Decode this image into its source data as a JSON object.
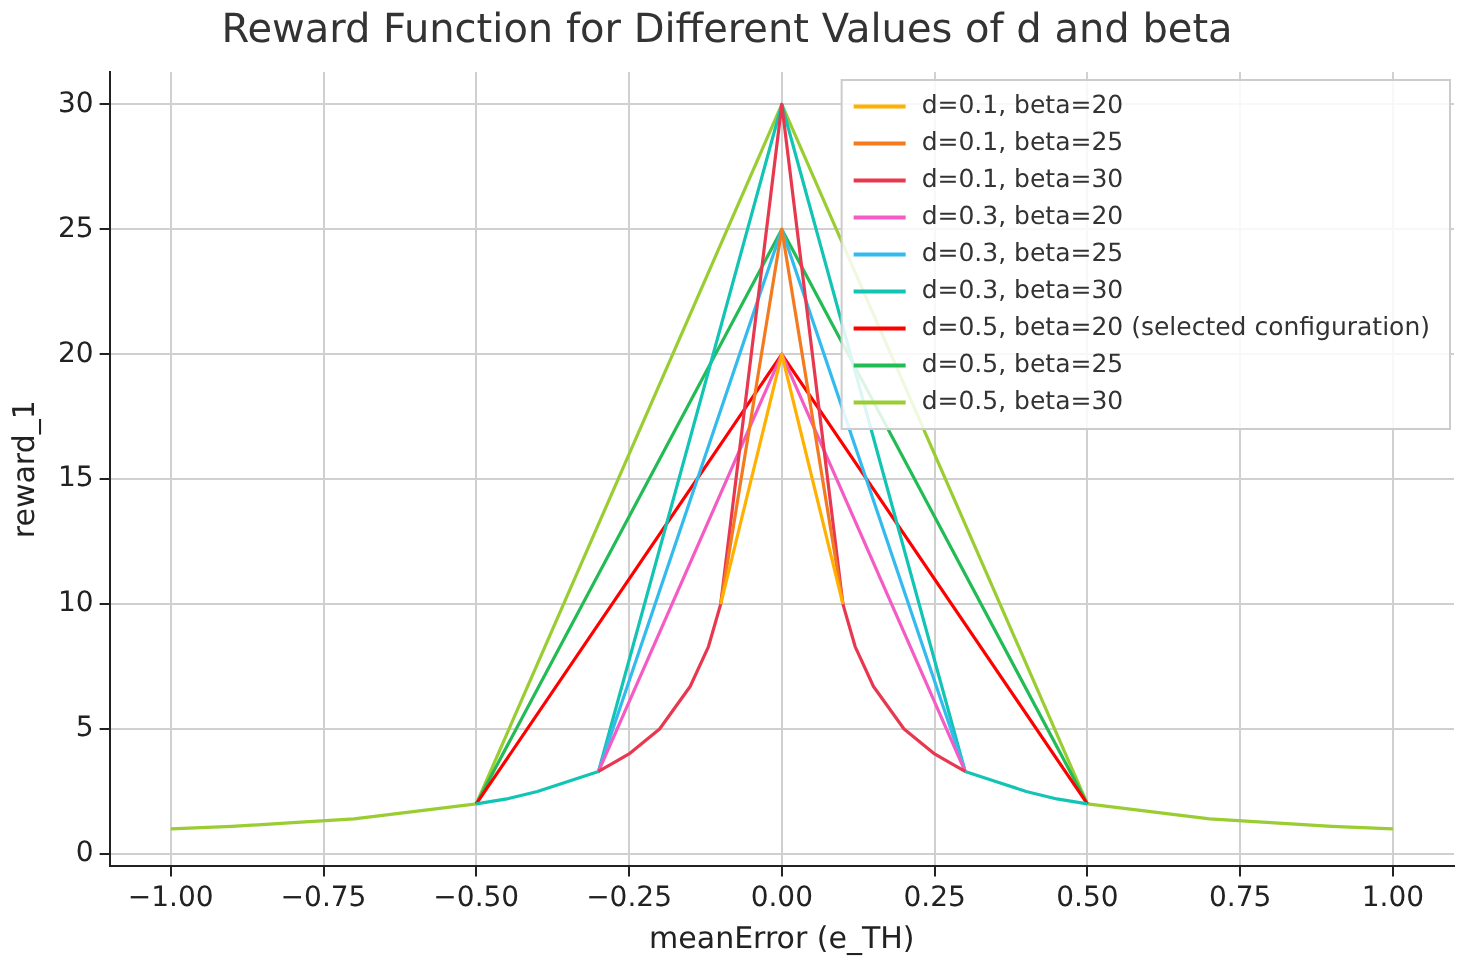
{
  "chart_data": {
    "type": "line",
    "title": "Reward Function for Different Values of d and beta",
    "xlabel": "meanError (e_TH)",
    "ylabel": "reward_1",
    "xlim": [
      -1.1,
      1.1
    ],
    "xticks": [
      {
        "value": -1,
        "label": "−1.00"
      },
      {
        "value": -0.75,
        "label": "−0.75"
      },
      {
        "value": -0.5,
        "label": "−0.50"
      },
      {
        "value": -0.25,
        "label": "−0.25"
      },
      {
        "value": 0,
        "label": "0.00"
      },
      {
        "value": 0.25,
        "label": "0.25"
      },
      {
        "value": 0.5,
        "label": "0.50"
      },
      {
        "value": 0.75,
        "label": "0.75"
      },
      {
        "value": 1,
        "label": "1.00"
      }
    ],
    "ylim": [
      -0.5,
      31.3
    ],
    "yticks": [
      0,
      5,
      10,
      15,
      20,
      25,
      30
    ],
    "grid": true,
    "legend": "top right",
    "marker": "none",
    "line_style": "solid",
    "series": [
      {
        "name": "d=0.1, beta=20",
        "color": "#ffb000",
        "x": [
          -0.1,
          0,
          0.1
        ],
        "values": [
          10,
          20,
          10
        ]
      },
      {
        "name": "d=0.1, beta=25",
        "color": "#f47a20",
        "x": [
          -0.1,
          0,
          0.1
        ],
        "values": [
          10,
          25,
          10
        ]
      },
      {
        "name": "d=0.1, beta=30",
        "color": "#e8384f",
        "x": [
          -0.3,
          -0.25,
          -0.2,
          -0.15,
          -0.12,
          -0.1,
          0,
          0.1,
          0.12,
          0.15,
          0.2,
          0.25,
          0.3
        ],
        "values": [
          3.3,
          4,
          5,
          6.7,
          8.3,
          10,
          30,
          10,
          8.3,
          6.7,
          5,
          4,
          3.3
        ]
      },
      {
        "name": "d=0.3, beta=20",
        "color": "#f45cc4",
        "x": [
          -0.3,
          0,
          0.3
        ],
        "values": [
          3.3,
          20,
          3.3
        ]
      },
      {
        "name": "d=0.3, beta=25",
        "color": "#33bbee",
        "x": [
          -0.3,
          0,
          0.3
        ],
        "values": [
          3.3,
          25,
          3.3
        ]
      },
      {
        "name": "d=0.3, beta=30",
        "color": "#11c4b4",
        "x": [
          -0.5,
          -0.45,
          -0.4,
          -0.35,
          -0.3,
          0,
          0.3,
          0.35,
          0.4,
          0.45,
          0.5
        ],
        "values": [
          2,
          2.2,
          2.5,
          2.9,
          3.3,
          30,
          3.3,
          2.9,
          2.5,
          2.2,
          2
        ]
      },
      {
        "name": "d=0.5, beta=20 (selected configuration)",
        "color": "#ff0000",
        "x": [
          -0.5,
          0,
          0.5
        ],
        "values": [
          2,
          20,
          2
        ]
      },
      {
        "name": "d=0.5, beta=25",
        "color": "#22bb55",
        "x": [
          -0.5,
          0,
          0.5
        ],
        "values": [
          2,
          25,
          2
        ]
      },
      {
        "name": "d=0.5, beta=30",
        "color": "#9acd32",
        "x": [
          -1,
          -0.9,
          -0.8,
          -0.7,
          -0.6,
          -0.5,
          0,
          0.5,
          0.6,
          0.7,
          0.8,
          0.9,
          1
        ],
        "values": [
          1,
          1.1,
          1.25,
          1.4,
          1.7,
          2,
          30,
          2,
          1.7,
          1.4,
          1.25,
          1.1,
          1
        ]
      }
    ]
  }
}
